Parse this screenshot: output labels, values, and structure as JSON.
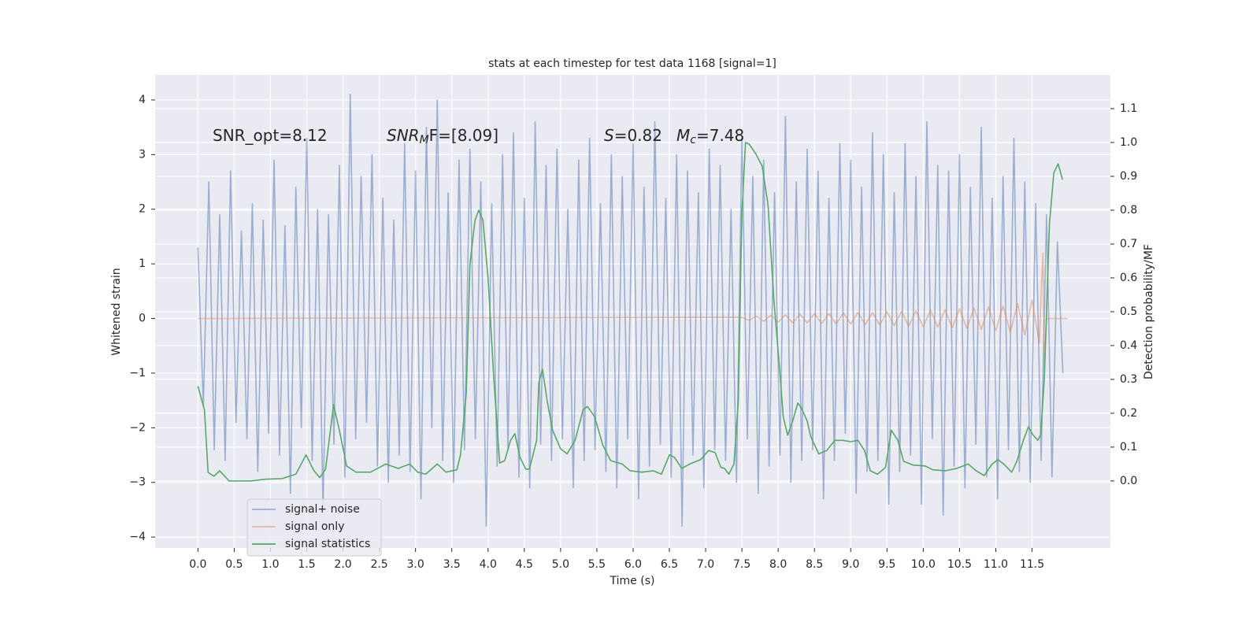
{
  "chart_data": {
    "type": "line",
    "title": "stats at each timestep for test data 1168 [signal=1]",
    "x_label": "Time (s)",
    "y_label": "Whitened strain",
    "y2_label": "Detection probability/MF",
    "annotations": [
      [
        "SNR_opt=8.12"
      ],
      [
        "SNR",
        "M",
        "F=[8.09]"
      ],
      [
        "S",
        "=0.82"
      ],
      [
        "M",
        "c",
        "=7.48"
      ]
    ],
    "grid": true,
    "legend": "lower left",
    "background": "#eaeaf2",
    "xlim": [
      -0.59,
      12.58
    ],
    "ylim": [
      -4.2,
      4.46
    ],
    "y2lim": [
      -0.198,
      1.2
    ],
    "xticks": [
      {
        "value": 0,
        "label": "0.0"
      },
      {
        "value": 0.5,
        "label": "0.5"
      },
      {
        "value": 1,
        "label": "1.0"
      },
      {
        "value": 1.5,
        "label": "1.5"
      },
      {
        "value": 2,
        "label": "2.0"
      },
      {
        "value": 2.5,
        "label": "2.5"
      },
      {
        "value": 3,
        "label": "3.0"
      },
      {
        "value": 3.5,
        "label": "3.5"
      },
      {
        "value": 4,
        "label": "4.0"
      },
      {
        "value": 4.5,
        "label": "4.5"
      },
      {
        "value": 5,
        "label": "5.0"
      },
      {
        "value": 5.5,
        "label": "5.5"
      },
      {
        "value": 6,
        "label": "6.0"
      },
      {
        "value": 6.5,
        "label": "6.5"
      },
      {
        "value": 7,
        "label": "7.0"
      },
      {
        "value": 7.5,
        "label": "7.5"
      },
      {
        "value": 8,
        "label": "8.0"
      },
      {
        "value": 8.5,
        "label": "8.5"
      },
      {
        "value": 9,
        "label": "9.0"
      },
      {
        "value": 9.5,
        "label": "9.5"
      },
      {
        "value": 10,
        "label": "10.0"
      },
      {
        "value": 10.5,
        "label": "10.5"
      },
      {
        "value": 11,
        "label": "11.0"
      },
      {
        "value": 11.5,
        "label": "11.5"
      }
    ],
    "yticks": [
      {
        "value": -4,
        "label": "−4"
      },
      {
        "value": -3,
        "label": "−3"
      },
      {
        "value": -2,
        "label": "−2"
      },
      {
        "value": -1,
        "label": "−1"
      },
      0,
      1,
      2,
      3,
      4
    ],
    "y2ticks": [
      {
        "value": 0,
        "label": "0.0"
      },
      {
        "value": 0.1,
        "label": "0.1"
      },
      {
        "value": 0.2,
        "label": "0.2"
      },
      {
        "value": 0.3,
        "label": "0.3"
      },
      {
        "value": 0.4,
        "label": "0.4"
      },
      {
        "value": 0.5,
        "label": "0.5"
      },
      {
        "value": 0.6,
        "label": "0.6"
      },
      {
        "value": 0.7,
        "label": "0.7"
      },
      {
        "value": 0.8,
        "label": "0.8"
      },
      {
        "value": 0.9,
        "label": "0.9"
      },
      {
        "value": 1.0,
        "label": "1.0"
      },
      {
        "value": 1.1,
        "label": "1.1"
      }
    ],
    "series": [
      {
        "name": "signal+ noise",
        "color": "#4c72b0",
        "opacity": 0.5,
        "axis": "y",
        "x": [
          0,
          0.075,
          0.15,
          0.225,
          0.3,
          0.375,
          0.45,
          0.525,
          0.6,
          0.675,
          0.75,
          0.825,
          0.9,
          0.975,
          1.05,
          1.125,
          1.2,
          1.275,
          1.35,
          1.425,
          1.5,
          1.575,
          1.65,
          1.725,
          1.8,
          1.875,
          1.95,
          2.025,
          2.1,
          2.175,
          2.25,
          2.325,
          2.4,
          2.475,
          2.55,
          2.625,
          2.7,
          2.775,
          2.85,
          2.925,
          3,
          3.075,
          3.15,
          3.225,
          3.3,
          3.375,
          3.45,
          3.525,
          3.6,
          3.675,
          3.75,
          3.825,
          3.9,
          3.975,
          4.05,
          4.125,
          4.2,
          4.275,
          4.35,
          4.425,
          4.5,
          4.575,
          4.65,
          4.725,
          4.8,
          4.875,
          4.95,
          5.025,
          5.1,
          5.175,
          5.25,
          5.325,
          5.4,
          5.475,
          5.55,
          5.625,
          5.7,
          5.775,
          5.85,
          5.925,
          6,
          6.075,
          6.15,
          6.225,
          6.3,
          6.375,
          6.45,
          6.525,
          6.6,
          6.675,
          6.75,
          6.825,
          6.9,
          6.975,
          7.05,
          7.125,
          7.2,
          7.275,
          7.35,
          7.425,
          7.5,
          7.575,
          7.65,
          7.725,
          7.8,
          7.875,
          7.95,
          8.025,
          8.1,
          8.175,
          8.25,
          8.325,
          8.4,
          8.475,
          8.55,
          8.625,
          8.7,
          8.775,
          8.85,
          8.925,
          9,
          9.075,
          9.15,
          9.225,
          9.3,
          9.375,
          9.45,
          9.525,
          9.6,
          9.675,
          9.75,
          9.825,
          9.9,
          9.975,
          10.05,
          10.125,
          10.2,
          10.275,
          10.35,
          10.425,
          10.5,
          10.575,
          10.65,
          10.725,
          10.8,
          10.875,
          10.95,
          11.025,
          11.1,
          11.175,
          11.25,
          11.325,
          11.4,
          11.475,
          11.55,
          11.625,
          11.7,
          11.775,
          11.85,
          11.925
        ],
        "values": [
          1.3,
          -1.6,
          2.5,
          -2.4,
          1.9,
          -2.6,
          2.7,
          -1.9,
          1.6,
          -2.2,
          2.1,
          -2.8,
          1.8,
          -2.1,
          2.9,
          -2.5,
          1.7,
          -3.2,
          2.4,
          -2.0,
          3.3,
          -2.6,
          2.0,
          -3.5,
          1.9,
          -2.3,
          2.8,
          -2.9,
          4.1,
          -2.2,
          2.6,
          -1.9,
          3.0,
          -2.7,
          2.2,
          -3.0,
          1.8,
          -2.5,
          3.2,
          -2.8,
          2.7,
          -3.3,
          3.5,
          -2.0,
          4.0,
          -2.6,
          2.3,
          -3.0,
          2.9,
          -2.4,
          3.1,
          -2.2,
          2.5,
          -3.8,
          2.1,
          -2.7,
          3.0,
          -2.4,
          3.4,
          -2.9,
          2.2,
          -3.1,
          3.6,
          -2.3,
          2.8,
          -2.6,
          3.1,
          -2.2,
          2.0,
          -3.1,
          2.9,
          -2.6,
          3.3,
          -2.4,
          2.1,
          -2.8,
          3.0,
          -3.1,
          2.6,
          -2.2,
          3.2,
          -3.3,
          2.4,
          -2.7,
          3.6,
          -2.3,
          2.2,
          -2.9,
          3.0,
          -3.8,
          2.7,
          -2.5,
          2.3,
          -3.1,
          3.1,
          -2.4,
          2.8,
          -2.6,
          2.0,
          -3.0,
          3.3,
          -2.2,
          2.6,
          -3.2,
          2.9,
          -2.7,
          2.3,
          -2.5,
          3.7,
          -3.0,
          2.5,
          -2.6,
          3.1,
          -2.4,
          2.7,
          -3.3,
          2.2,
          -2.6,
          3.2,
          -2.1,
          2.9,
          -3.2,
          2.4,
          -2.8,
          3.4,
          -2.6,
          3.0,
          -3.4,
          2.3,
          -2.8,
          3.2,
          -2.5,
          2.6,
          -3.4,
          3.6,
          -2.2,
          2.8,
          -3.6,
          2.7,
          -2.7,
          3.0,
          -3.1,
          2.4,
          -2.3,
          3.5,
          -2.9,
          2.2,
          -3.3,
          2.6,
          -2.4,
          3.3,
          -2.8,
          2.5,
          -3.0,
          2.1,
          -2.6,
          1.9,
          -2.9,
          1.4,
          -1.0
        ]
      },
      {
        "name": "signal only",
        "color": "#dd8452",
        "opacity": 0.5,
        "axis": "y",
        "x": [
          0,
          7.5,
          7.6,
          7.7,
          7.8,
          7.9,
          8.0,
          8.1,
          8.2,
          8.3,
          8.4,
          8.5,
          8.6,
          8.7,
          8.8,
          8.9,
          9.0,
          9.1,
          9.2,
          9.3,
          9.4,
          9.5,
          9.6,
          9.7,
          9.8,
          9.9,
          10.0,
          10.1,
          10.2,
          10.3,
          10.4,
          10.5,
          10.6,
          10.7,
          10.8,
          10.9,
          11.0,
          11.1,
          11.2,
          11.3,
          11.4,
          11.5,
          11.6,
          11.63,
          11.65,
          11.67,
          11.7,
          11.99
        ],
        "values": [
          0,
          0.02,
          -0.03,
          0.04,
          -0.05,
          0.06,
          -0.07,
          0.07,
          -0.08,
          0.08,
          -0.08,
          0.09,
          -0.09,
          0.09,
          -0.1,
          0.1,
          -0.1,
          0.11,
          -0.11,
          0.11,
          -0.12,
          0.12,
          -0.13,
          0.13,
          -0.14,
          0.14,
          -0.15,
          0.15,
          -0.16,
          0.16,
          -0.17,
          0.18,
          -0.18,
          0.19,
          -0.2,
          0.21,
          -0.22,
          0.23,
          -0.25,
          0.27,
          -0.3,
          0.34,
          -0.45,
          0.6,
          1.2,
          -0.9,
          0,
          0
        ]
      },
      {
        "name": "signal statistics",
        "color": "#55a868",
        "opacity": 1,
        "axis": "y2",
        "x": [
          0,
          0.09,
          0.14,
          0.22,
          0.3,
          0.43,
          0.59,
          0.73,
          0.93,
          1.16,
          1.35,
          1.49,
          1.6,
          1.68,
          1.76,
          1.87,
          1.95,
          2.05,
          2.18,
          2.38,
          2.59,
          2.76,
          2.92,
          3.03,
          3.14,
          3.3,
          3.42,
          3.57,
          3.62,
          3.7,
          3.75,
          3.82,
          3.87,
          3.93,
          4.0,
          4.08,
          4.16,
          4.23,
          4.31,
          4.37,
          4.44,
          4.52,
          4.57,
          4.67,
          4.7,
          4.75,
          4.82,
          4.89,
          5.0,
          5.09,
          5.2,
          5.31,
          5.37,
          5.47,
          5.58,
          5.69,
          5.85,
          5.96,
          6.12,
          6.28,
          6.39,
          6.5,
          6.57,
          6.67,
          6.78,
          6.93,
          7.04,
          7.13,
          7.21,
          7.26,
          7.32,
          7.39,
          7.45,
          7.5,
          7.55,
          7.6,
          7.69,
          7.78,
          7.86,
          7.94,
          8.02,
          8.07,
          8.13,
          8.2,
          8.27,
          8.32,
          8.4,
          8.45,
          8.56,
          8.67,
          8.78,
          8.89,
          9.0,
          9.1,
          9.19,
          9.27,
          9.37,
          9.48,
          9.56,
          9.65,
          9.73,
          9.86,
          10.03,
          10.13,
          10.3,
          10.46,
          10.62,
          10.73,
          10.84,
          10.95,
          11.03,
          11.11,
          11.22,
          11.29,
          11.38,
          11.45,
          11.51,
          11.58,
          11.62,
          11.67,
          11.74,
          11.8,
          11.86,
          11.92
        ],
        "values": [
          0.28,
          0.21,
          0.025,
          0.014,
          0.03,
          0.0,
          0.0,
          0.0,
          0.005,
          0.007,
          0.02,
          0.077,
          0.03,
          0.01,
          0.035,
          0.225,
          0.15,
          0.044,
          0.026,
          0.026,
          0.05,
          0.037,
          0.05,
          0.026,
          0.02,
          0.05,
          0.026,
          0.033,
          0.077,
          0.26,
          0.64,
          0.77,
          0.8,
          0.77,
          0.6,
          0.3,
          0.053,
          0.06,
          0.12,
          0.14,
          0.07,
          0.035,
          0.035,
          0.12,
          0.29,
          0.33,
          0.23,
          0.15,
          0.095,
          0.08,
          0.12,
          0.21,
          0.22,
          0.19,
          0.107,
          0.06,
          0.05,
          0.03,
          0.026,
          0.03,
          0.02,
          0.077,
          0.07,
          0.037,
          0.05,
          0.063,
          0.09,
          0.084,
          0.04,
          0.037,
          0.02,
          0.05,
          0.235,
          0.793,
          1.0,
          0.995,
          0.967,
          0.93,
          0.816,
          0.537,
          0.33,
          0.19,
          0.135,
          0.177,
          0.23,
          0.216,
          0.177,
          0.13,
          0.08,
          0.09,
          0.12,
          0.12,
          0.116,
          0.12,
          0.09,
          0.03,
          0.02,
          0.04,
          0.15,
          0.12,
          0.058,
          0.047,
          0.044,
          0.033,
          0.03,
          0.037,
          0.05,
          0.03,
          0.016,
          0.05,
          0.063,
          0.05,
          0.026,
          0.058,
          0.12,
          0.16,
          0.137,
          0.12,
          0.137,
          0.305,
          0.76,
          0.91,
          0.937,
          0.89
        ]
      }
    ]
  }
}
